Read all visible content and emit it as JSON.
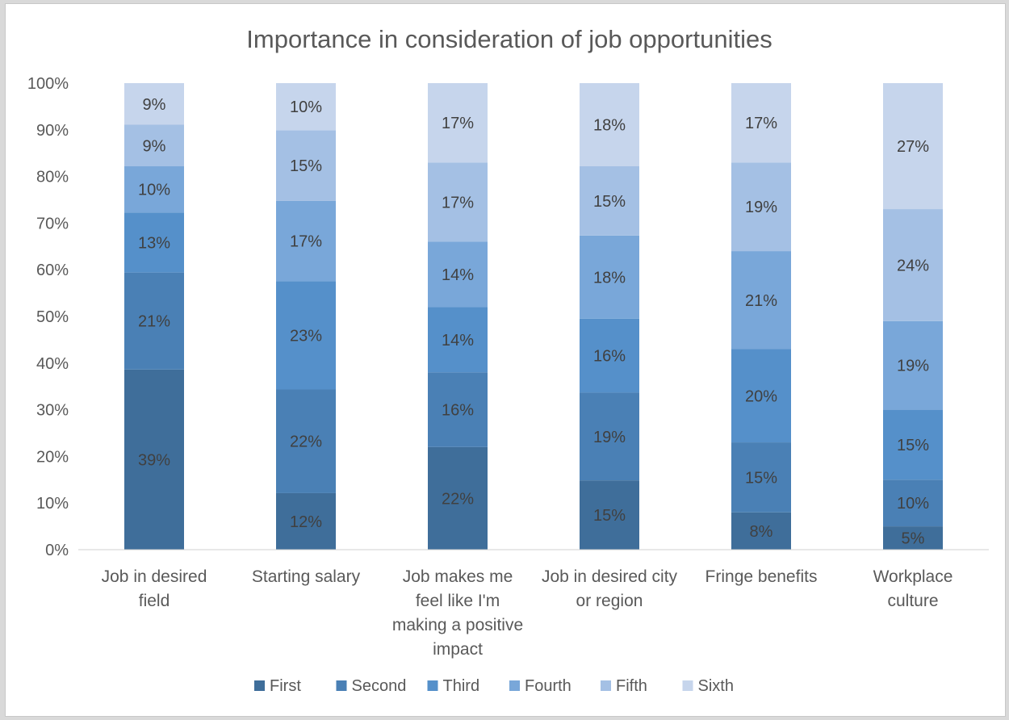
{
  "chart_data": {
    "type": "bar",
    "stacked": true,
    "percent": true,
    "title": "Importance in consideration of job opportunities",
    "categories": [
      [
        "Job in desired",
        "field"
      ],
      [
        "Starting salary"
      ],
      [
        "Job makes me",
        "feel like I'm",
        "making a positive",
        "impact"
      ],
      [
        "Job in desired city",
        "or region"
      ],
      [
        "Fringe benefits"
      ],
      [
        "Workplace",
        "culture"
      ]
    ],
    "series": [
      {
        "name": "First",
        "color": "#3f6e9a",
        "values": [
          39,
          12,
          22,
          15,
          8,
          5
        ]
      },
      {
        "name": "Second",
        "color": "#4a80b5",
        "values": [
          21,
          22,
          16,
          19,
          15,
          10
        ]
      },
      {
        "name": "Third",
        "color": "#5590ca",
        "values": [
          13,
          23,
          14,
          16,
          20,
          15
        ]
      },
      {
        "name": "Fourth",
        "color": "#79a7d9",
        "values": [
          10,
          17,
          14,
          18,
          21,
          19
        ]
      },
      {
        "name": "Fifth",
        "color": "#a4c0e4",
        "values": [
          9,
          15,
          17,
          15,
          19,
          24
        ]
      },
      {
        "name": "Sixth",
        "color": "#c6d5ec",
        "values": [
          9,
          10,
          17,
          18,
          17,
          27
        ]
      }
    ],
    "ylim": [
      0,
      100
    ],
    "yticks": [
      "0%",
      "10%",
      "20%",
      "30%",
      "40%",
      "50%",
      "60%",
      "70%",
      "80%",
      "90%",
      "100%"
    ],
    "legend_position": "bottom",
    "grid": false
  }
}
